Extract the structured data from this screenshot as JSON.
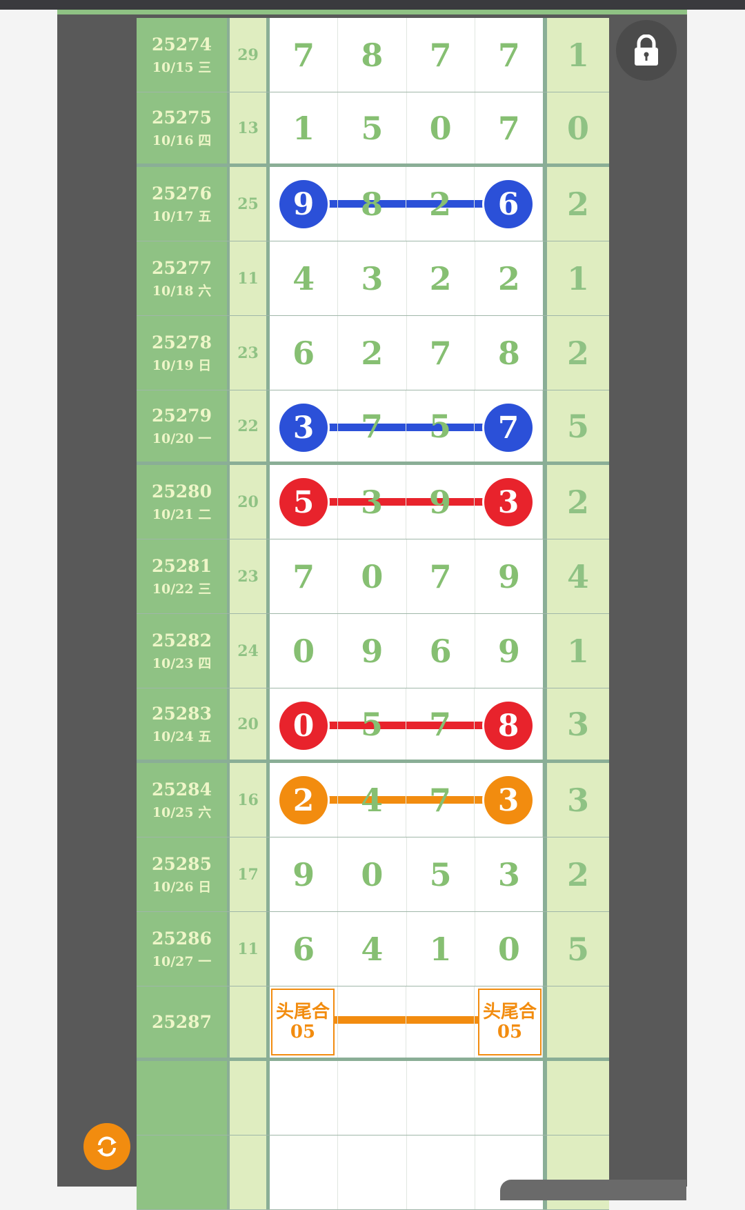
{
  "colors": {
    "blue": "#2b50d8",
    "red": "#e8232c",
    "orange": "#f28c0f",
    "digit_green": "#86bf72"
  },
  "icons": {
    "lock": "lock-icon",
    "refresh": "refresh-icon"
  },
  "rows": [
    {
      "issue": "25274",
      "date": "10/15 三",
      "sum": "29",
      "digits": [
        "7",
        "8",
        "7",
        "7"
      ],
      "last": "1"
    },
    {
      "issue": "25275",
      "date": "10/16 四",
      "sum": "13",
      "digits": [
        "1",
        "5",
        "0",
        "7"
      ],
      "last": "0",
      "group_end": true
    },
    {
      "issue": "25276",
      "date": "10/17 五",
      "sum": "25",
      "digits": [
        "9",
        "8",
        "2",
        "6"
      ],
      "last": "2",
      "highlight": "blue"
    },
    {
      "issue": "25277",
      "date": "10/18 六",
      "sum": "11",
      "digits": [
        "4",
        "3",
        "2",
        "2"
      ],
      "last": "1"
    },
    {
      "issue": "25278",
      "date": "10/19 日",
      "sum": "23",
      "digits": [
        "6",
        "2",
        "7",
        "8"
      ],
      "last": "2"
    },
    {
      "issue": "25279",
      "date": "10/20 一",
      "sum": "22",
      "digits": [
        "3",
        "7",
        "5",
        "7"
      ],
      "last": "5",
      "highlight": "blue",
      "group_end": true
    },
    {
      "issue": "25280",
      "date": "10/21 二",
      "sum": "20",
      "digits": [
        "5",
        "3",
        "9",
        "3"
      ],
      "last": "2",
      "highlight": "red"
    },
    {
      "issue": "25281",
      "date": "10/22 三",
      "sum": "23",
      "digits": [
        "7",
        "0",
        "7",
        "9"
      ],
      "last": "4"
    },
    {
      "issue": "25282",
      "date": "10/23 四",
      "sum": "24",
      "digits": [
        "0",
        "9",
        "6",
        "9"
      ],
      "last": "1"
    },
    {
      "issue": "25283",
      "date": "10/24 五",
      "sum": "20",
      "digits": [
        "0",
        "5",
        "7",
        "8"
      ],
      "last": "3",
      "highlight": "red",
      "group_end": true
    },
    {
      "issue": "25284",
      "date": "10/25 六",
      "sum": "16",
      "digits": [
        "2",
        "4",
        "7",
        "3"
      ],
      "last": "3",
      "highlight": "orange"
    },
    {
      "issue": "25285",
      "date": "10/26 日",
      "sum": "17",
      "digits": [
        "9",
        "0",
        "5",
        "3"
      ],
      "last": "2"
    },
    {
      "issue": "25286",
      "date": "10/27 一",
      "sum": "11",
      "digits": [
        "6",
        "4",
        "1",
        "0"
      ],
      "last": "5"
    },
    {
      "issue": "25287",
      "date": "",
      "sum": "",
      "digits": [
        "",
        "",
        "",
        ""
      ],
      "last": "",
      "prediction": {
        "label": "头尾合",
        "value": "05"
      },
      "group_end": true
    },
    {
      "issue": "",
      "date": "",
      "sum": "",
      "digits": [
        "",
        "",
        "",
        ""
      ],
      "last": ""
    },
    {
      "issue": "",
      "date": "",
      "sum": "",
      "digits": [
        "",
        "",
        "",
        ""
      ],
      "last": ""
    }
  ]
}
